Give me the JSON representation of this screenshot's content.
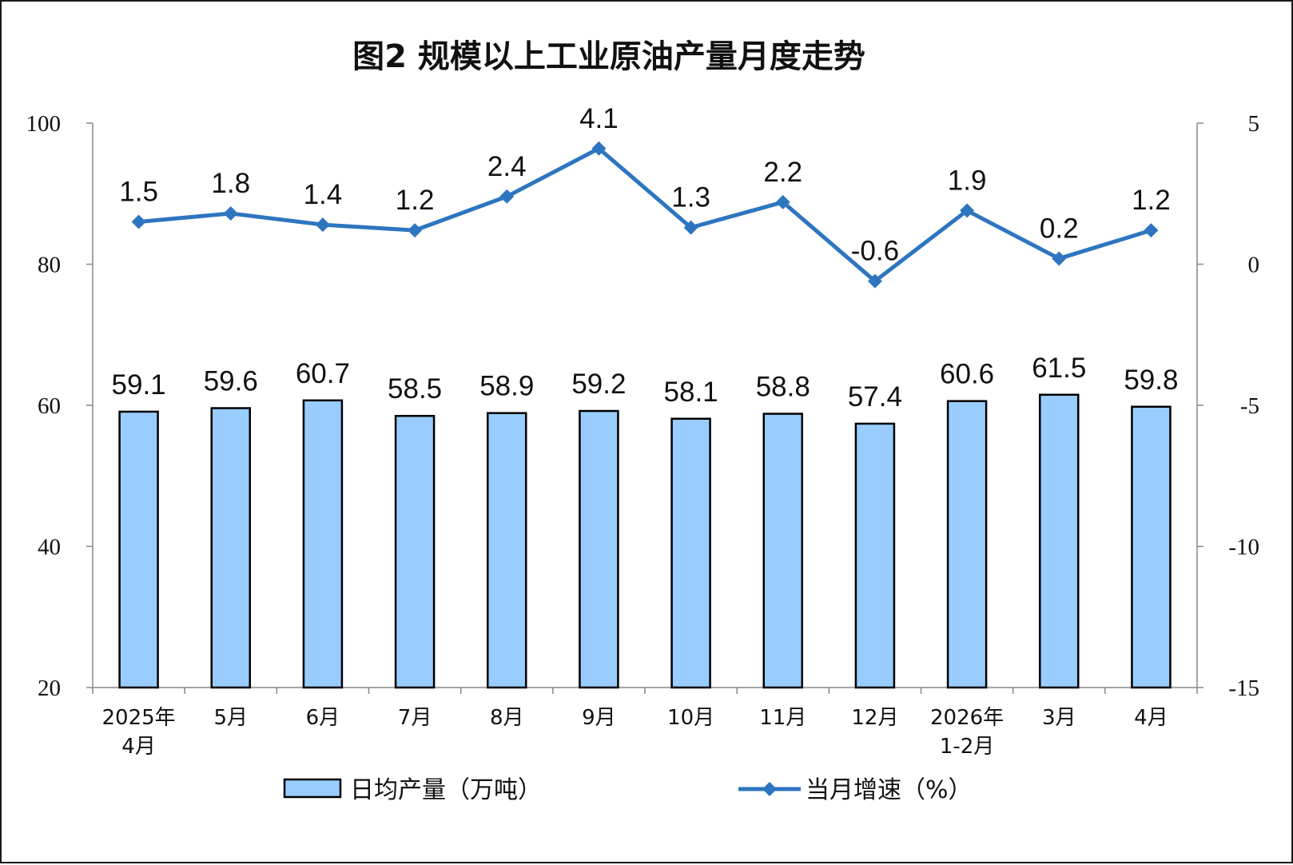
{
  "chart_data": {
    "type": "bar+line",
    "title": "图2  规模以上工业原油产量月度走势",
    "categories": [
      [
        "2025年",
        "4月"
      ],
      [
        "5月"
      ],
      [
        "6月"
      ],
      [
        "7月"
      ],
      [
        "8月"
      ],
      [
        "9月"
      ],
      [
        "10月"
      ],
      [
        "11月"
      ],
      [
        "12月"
      ],
      [
        "2026年",
        "1-2月"
      ],
      [
        "3月"
      ],
      [
        "4月"
      ]
    ],
    "series": [
      {
        "name": "日均产量（万吨）",
        "type": "bar",
        "axis": "left",
        "color": "#99CCFF",
        "values": [
          59.1,
          59.6,
          60.7,
          58.5,
          58.9,
          59.2,
          58.1,
          58.8,
          57.4,
          60.6,
          61.5,
          59.8
        ],
        "labels": [
          "59.1",
          "59.6",
          "60.7",
          "58.5",
          "58.9",
          "59.2",
          "58.1",
          "58.8",
          "57.4",
          "60.6",
          "61.5",
          "59.8"
        ]
      },
      {
        "name": "当月增速（%）",
        "type": "line",
        "axis": "right",
        "color": "#2E75C0",
        "values": [
          1.5,
          1.8,
          1.4,
          1.2,
          2.4,
          4.1,
          1.3,
          2.2,
          -0.6,
          1.9,
          0.2,
          1.2
        ],
        "labels": [
          "1.5",
          "1.8",
          "1.4",
          "1.2",
          "2.4",
          "4.1",
          "1.3",
          "2.2",
          "-0.6",
          "1.9",
          "0.2",
          "1.2"
        ]
      }
    ],
    "left_axis": {
      "min": 20,
      "max": 100,
      "ticks": [
        "20",
        "40",
        "60",
        "80",
        "100"
      ]
    },
    "right_axis": {
      "min": -15,
      "max": 5,
      "ticks": [
        "-15",
        "-10",
        "-5",
        "0",
        "5"
      ]
    },
    "grid": false,
    "legend_position": "bottom"
  }
}
